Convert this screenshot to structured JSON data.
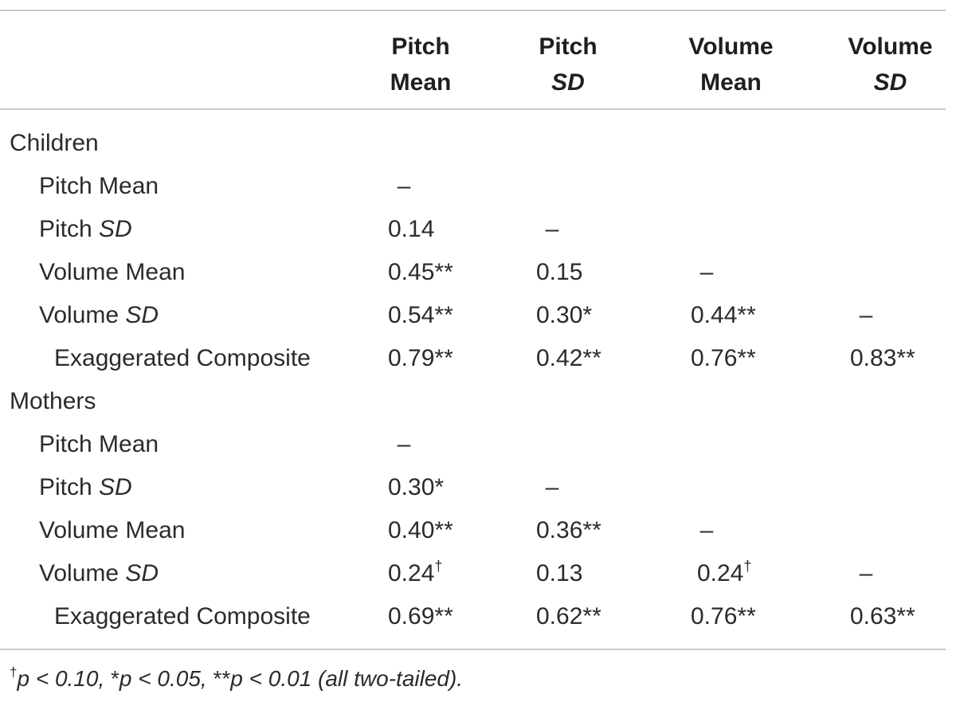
{
  "header": {
    "columns": [
      {
        "line1": "Pitch",
        "line2": "Mean"
      },
      {
        "line1": "Pitch",
        "line2": "SD"
      },
      {
        "line1": "Volume",
        "line2": "Mean"
      },
      {
        "line1": "Volume",
        "line2": "SD"
      }
    ]
  },
  "groups": {
    "children": {
      "label": "Children",
      "rows": [
        {
          "label": "Pitch Mean",
          "c1": "–",
          "c2": "",
          "c3": "",
          "c4": ""
        },
        {
          "label_a": "Pitch ",
          "label_b": "SD",
          "c1": "0.14",
          "c2": "–",
          "c3": "",
          "c4": ""
        },
        {
          "label": "Volume Mean",
          "c1": "0.45**",
          "c2": "0.15",
          "c3": "–",
          "c4": ""
        },
        {
          "label_a": "Volume ",
          "label_b": "SD",
          "c1": "0.54**",
          "c2": "0.30*",
          "c3": "0.44**",
          "c4": "–"
        },
        {
          "label": "Exaggerated Composite",
          "c1": "0.79**",
          "c2": "0.42**",
          "c3": "0.76**",
          "c4": "0.83**"
        }
      ]
    },
    "mothers": {
      "label": "Mothers",
      "rows": [
        {
          "label": "Pitch Mean",
          "c1": "–",
          "c2": "",
          "c3": "",
          "c4": ""
        },
        {
          "label_a": "Pitch ",
          "label_b": "SD",
          "c1": "0.30*",
          "c2": "–",
          "c3": "",
          "c4": ""
        },
        {
          "label": "Volume Mean",
          "c1": "0.40**",
          "c2": "0.36**",
          "c3": "–",
          "c4": ""
        },
        {
          "label_a": "Volume ",
          "label_b": "SD",
          "c1_val": "0.24",
          "c1_sup": "†",
          "c2": "0.13",
          "c3_val": "0.24",
          "c3_sup": "†",
          "c4": "–"
        },
        {
          "label": "Exaggerated Composite",
          "c1": "0.69**",
          "c2": "0.62**",
          "c3": "0.76**",
          "c4": "0.63**"
        }
      ]
    }
  },
  "footnote": {
    "dagger": "†",
    "text1": "p < 0.10, ",
    "star1": "*",
    "text2": "p < 0.05, ",
    "star2": "**",
    "text3": "p < 0.01 (all two-tailed)."
  }
}
